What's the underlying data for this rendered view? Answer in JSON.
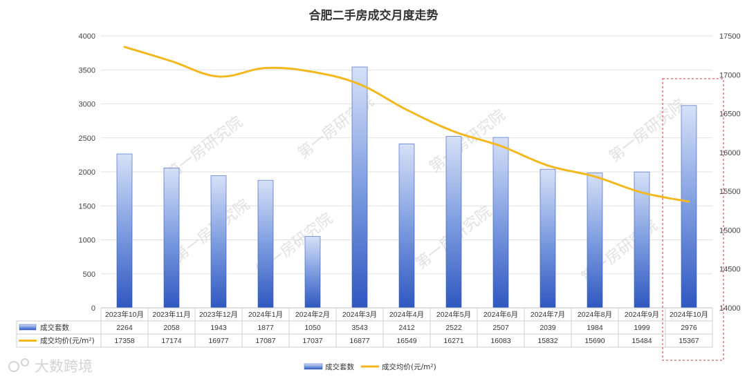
{
  "chart_data": {
    "type": "bar",
    "title": "合肥二手房成交月度走势",
    "categories": [
      "2023年10月",
      "2023年11月",
      "2023年12月",
      "2024年1月",
      "2024年2月",
      "2024年3月",
      "2024年4月",
      "2024年5月",
      "2024年6月",
      "2024年7月",
      "2024年8月",
      "2024年9月",
      "2024年10月"
    ],
    "series": [
      {
        "name": "成交套数",
        "type": "bar",
        "axis": "left",
        "color": "#3a63c4",
        "values": [
          2264,
          2058,
          1943,
          1877,
          1050,
          3543,
          2412,
          2522,
          2507,
          2039,
          1984,
          1999,
          2976
        ]
      },
      {
        "name": "成交均价(元/m²)",
        "type": "line",
        "axis": "right",
        "color": "#f2b81d",
        "values": [
          17358,
          17174,
          16977,
          17087,
          17037,
          16877,
          16549,
          16271,
          16083,
          15832,
          15690,
          15484,
          15367
        ]
      }
    ],
    "y_left": {
      "min": 0,
      "max": 4000,
      "ticks": [
        0,
        500,
        1000,
        1500,
        2000,
        2500,
        3000,
        3500,
        4000
      ]
    },
    "y_right": {
      "min": 14000,
      "max": 17500,
      "ticks": [
        14000,
        14500,
        15000,
        15500,
        16000,
        16500,
        17000,
        17500
      ]
    },
    "grid": true,
    "legend": "bottom-center",
    "data_table": true,
    "highlight": {
      "category": "2024年10月",
      "style": "red-dashed-box"
    },
    "watermark": "第一房研究院"
  },
  "brand": {
    "logo_text": "大数跨境"
  }
}
